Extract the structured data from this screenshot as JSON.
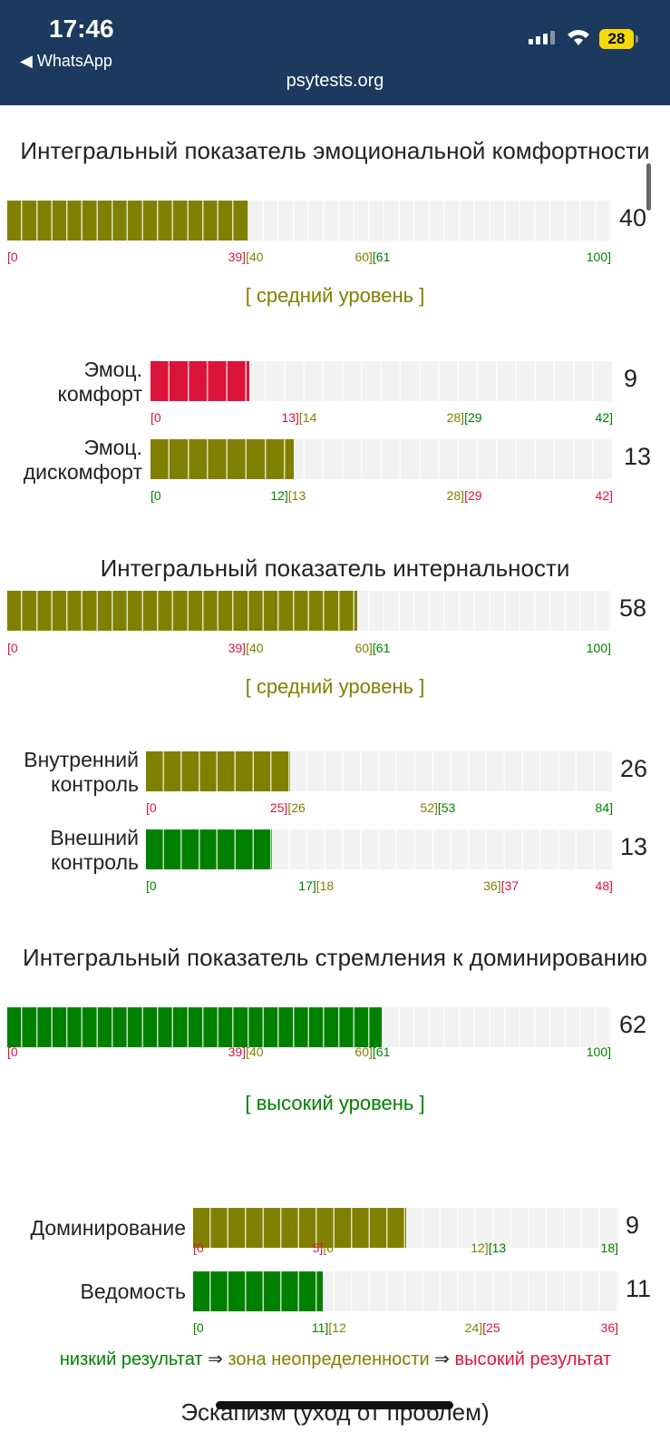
{
  "status": {
    "time": "17:46",
    "back": "◀ WhatsApp",
    "url": "psytests.org",
    "battery": "28"
  },
  "colors": {
    "low": "#008000",
    "mid": "#808000",
    "high": "#dc143c"
  },
  "sections": [
    {
      "title": "Интегральный показатель эмоциональной комфортности",
      "value": "40",
      "num": 40,
      "max": 100,
      "color": "mid",
      "level": "[ средний уровень ]",
      "level_color": "mid",
      "ticks": [
        {
          "at": 0,
          "parts": [
            [
              "[0",
              "high"
            ]
          ]
        },
        {
          "at": 39.5,
          "parts": [
            [
              "39]",
              "high"
            ],
            [
              "[40",
              "mid"
            ]
          ]
        },
        {
          "at": 60.5,
          "parts": [
            [
              "60]",
              "mid"
            ],
            [
              "[61",
              "low"
            ]
          ]
        },
        {
          "at": 100,
          "parts": [
            [
              "100]",
              "low"
            ]
          ]
        }
      ],
      "subs": [
        {
          "label": "Эмоц. комфорт",
          "value": "9",
          "num": 9,
          "max": 42,
          "color": "high",
          "ticks": [
            {
              "at": 0,
              "parts": [
                [
                  "[0",
                  "high"
                ]
              ]
            },
            {
              "at": 13.5,
              "parts": [
                [
                  "13]",
                  "high"
                ],
                [
                  "[14",
                  "mid"
                ]
              ]
            },
            {
              "at": 28.5,
              "parts": [
                [
                  "28]",
                  "mid"
                ],
                [
                  "[29",
                  "low"
                ]
              ]
            },
            {
              "at": 42,
              "parts": [
                [
                  "42]",
                  "low"
                ]
              ]
            }
          ]
        },
        {
          "label": "Эмоц. дискомфорт",
          "value": "13",
          "num": 13,
          "max": 42,
          "color": "mid",
          "ticks": [
            {
              "at": 0,
              "parts": [
                [
                  "[0",
                  "low"
                ]
              ]
            },
            {
              "at": 12.5,
              "parts": [
                [
                  "12]",
                  "low"
                ],
                [
                  "[13",
                  "mid"
                ]
              ]
            },
            {
              "at": 28.5,
              "parts": [
                [
                  "28]",
                  "mid"
                ],
                [
                  "[29",
                  "high"
                ]
              ]
            },
            {
              "at": 42,
              "parts": [
                [
                  "42]",
                  "high"
                ]
              ]
            }
          ]
        }
      ]
    },
    {
      "title": "Интегральный показатель интернальности",
      "value": "58",
      "num": 58,
      "max": 100,
      "color": "mid",
      "level": "[ средний уровень ]",
      "level_color": "mid",
      "ticks": [
        {
          "at": 0,
          "parts": [
            [
              "[0",
              "high"
            ]
          ]
        },
        {
          "at": 39.5,
          "parts": [
            [
              "39]",
              "high"
            ],
            [
              "[40",
              "mid"
            ]
          ]
        },
        {
          "at": 60.5,
          "parts": [
            [
              "60]",
              "mid"
            ],
            [
              "[61",
              "low"
            ]
          ]
        },
        {
          "at": 100,
          "parts": [
            [
              "100]",
              "low"
            ]
          ]
        }
      ],
      "subs": [
        {
          "label": "Внутренний контроль",
          "value": "26",
          "num": 26,
          "max": 84,
          "color": "mid",
          "ticks": [
            {
              "at": 0,
              "parts": [
                [
                  "[0",
                  "high"
                ]
              ]
            },
            {
              "at": 25.5,
              "parts": [
                [
                  "25]",
                  "high"
                ],
                [
                  "[26",
                  "mid"
                ]
              ]
            },
            {
              "at": 52.5,
              "parts": [
                [
                  "52]",
                  "mid"
                ],
                [
                  "[53",
                  "low"
                ]
              ]
            },
            {
              "at": 84,
              "parts": [
                [
                  "84]",
                  "low"
                ]
              ]
            }
          ]
        },
        {
          "label": "Внешний контроль",
          "value": "13",
          "num": 13,
          "max": 48,
          "color": "low",
          "ticks": [
            {
              "at": 0,
              "parts": [
                [
                  "[0",
                  "low"
                ]
              ]
            },
            {
              "at": 17.5,
              "parts": [
                [
                  "17]",
                  "low"
                ],
                [
                  "[18",
                  "mid"
                ]
              ]
            },
            {
              "at": 36.5,
              "parts": [
                [
                  "36]",
                  "mid"
                ],
                [
                  "[37",
                  "high"
                ]
              ]
            },
            {
              "at": 48,
              "parts": [
                [
                  "48]",
                  "high"
                ]
              ]
            }
          ]
        }
      ]
    },
    {
      "title": "Интегральный показатель стремления к доминированию",
      "value": "62",
      "num": 62,
      "max": 100,
      "color": "low",
      "level": "[ высокий уровень ]",
      "level_color": "low",
      "ticks": [
        {
          "at": 0,
          "parts": [
            [
              "[0",
              "high"
            ]
          ]
        },
        {
          "at": 39.5,
          "parts": [
            [
              "39]",
              "high"
            ],
            [
              "[40",
              "mid"
            ]
          ]
        },
        {
          "at": 60.5,
          "parts": [
            [
              "60]",
              "mid"
            ],
            [
              "[61",
              "low"
            ]
          ]
        },
        {
          "at": 100,
          "parts": [
            [
              "100]",
              "low"
            ]
          ]
        }
      ],
      "subs": [
        {
          "label": "Доминирование",
          "value": "9",
          "num": 9,
          "max": 18,
          "color": "mid",
          "ticks": [
            {
              "at": 0,
              "parts": [
                [
                  "[0",
                  "high"
                ]
              ]
            },
            {
              "at": 5.5,
              "parts": [
                [
                  "5]",
                  "high"
                ],
                [
                  "[6",
                  "mid"
                ]
              ]
            },
            {
              "at": 12.5,
              "parts": [
                [
                  "12]",
                  "mid"
                ],
                [
                  "[13",
                  "low"
                ]
              ]
            },
            {
              "at": 18,
              "parts": [
                [
                  "18]",
                  "low"
                ]
              ]
            }
          ]
        },
        {
          "label": "Ведомость",
          "value": "11",
          "num": 11,
          "max": 36,
          "color": "low",
          "ticks": [
            {
              "at": 0,
              "parts": [
                [
                  "[0",
                  "low"
                ]
              ]
            },
            {
              "at": 11.5,
              "parts": [
                [
                  "11]",
                  "low"
                ],
                [
                  "[12",
                  "mid"
                ]
              ]
            },
            {
              "at": 24.5,
              "parts": [
                [
                  "24]",
                  "mid"
                ],
                [
                  "[25",
                  "high"
                ]
              ]
            },
            {
              "at": 36,
              "parts": [
                [
                  "36]",
                  "high"
                ]
              ]
            }
          ]
        }
      ]
    }
  ],
  "legend": {
    "low": "низкий результат",
    "arrow": " ⇒ ",
    "mid": "зона неопределенности",
    "high": "высокий результат"
  },
  "next_title": "Эскапизм (уход от проблем)"
}
